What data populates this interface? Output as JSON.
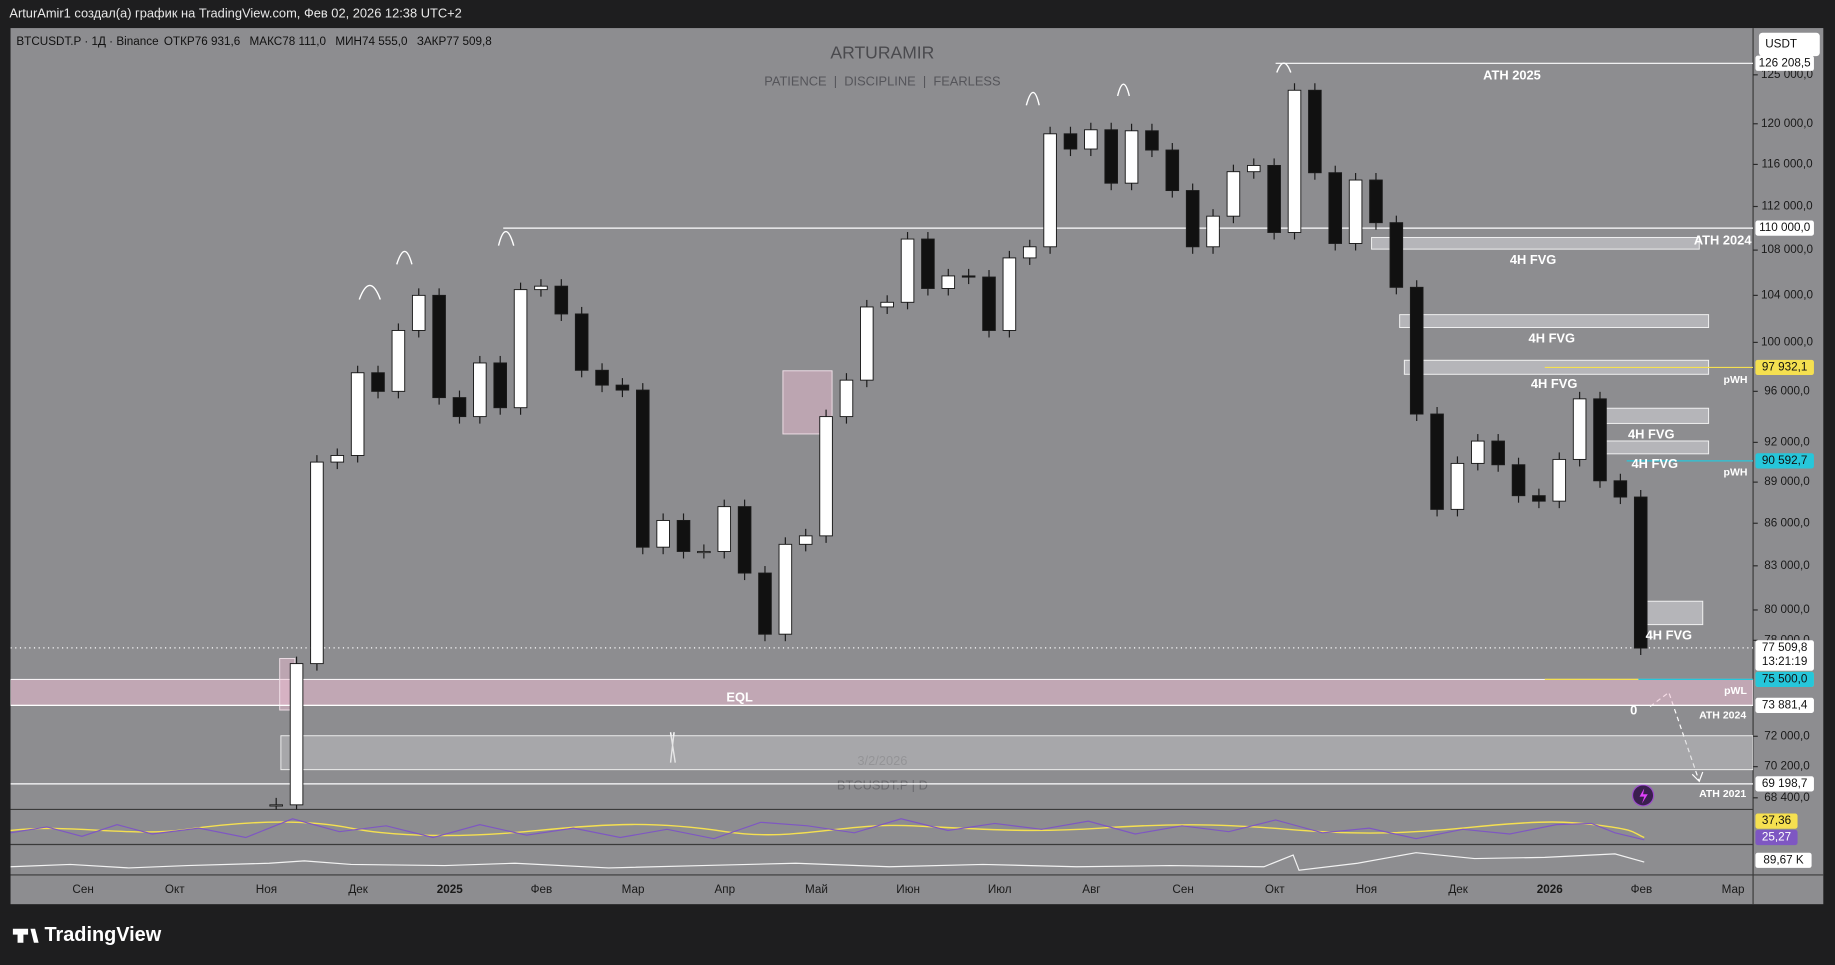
{
  "header": {
    "text": "ArturAmir1 создал(а) график на TradingView.com, Фев 02, 2026 12:38 UTC+2"
  },
  "symbol_bar": {
    "symbol": "BTCUSDT.P · 1Д · Binance",
    "fields": [
      {
        "key": "ОТКР",
        "value": "76 931,6"
      },
      {
        "key": "МАКС",
        "value": "78 111,0"
      },
      {
        "key": "МИН",
        "value": "74 555,0"
      },
      {
        "key": "ЗАКР",
        "value": "77 509,8"
      }
    ]
  },
  "watermark": {
    "title": "ARTURAMIR",
    "subtitle": "PATIENCE  |  DISCIPLINE  |  FEARLESS",
    "date": "3/2/2026",
    "symbol": "BTCUSDT.P | D"
  },
  "chart_data": {
    "type": "candlestick",
    "currency": "USDT",
    "log_scale": true,
    "up_color": "#ffffff",
    "down_color": "#111111",
    "ylim": [
      67740,
      129970
    ],
    "yticks": [
      {
        "value": 125000,
        "label": "125 000,0"
      },
      {
        "value": 120000,
        "label": "120 000,0"
      },
      {
        "value": 116000,
        "label": "116 000,0"
      },
      {
        "value": 112000,
        "label": "112 000,0"
      },
      {
        "value": 108000,
        "label": "108 000,0"
      },
      {
        "value": 104000,
        "label": "104 000,0"
      },
      {
        "value": 100000,
        "label": "100 000,0"
      },
      {
        "value": 96000,
        "label": "96 000,0"
      },
      {
        "value": 92000,
        "label": "92 000,0"
      },
      {
        "value": 89000,
        "label": "89 000,0"
      },
      {
        "value": 86000,
        "label": "86 000,0"
      },
      {
        "value": 83000,
        "label": "83 000,0"
      },
      {
        "value": 80000,
        "label": "80 000,0"
      },
      {
        "value": 78000,
        "label": "78 000,0"
      },
      {
        "value": 72000,
        "label": "72 000,0"
      },
      {
        "value": 70200,
        "label": "70 200,0"
      },
      {
        "value": 68400,
        "label": "68 400,0"
      }
    ],
    "values": [
      68000,
      76500,
      90500,
      91000,
      97500,
      96000,
      101000,
      104000,
      95500,
      94000,
      98300,
      94700,
      104500,
      104800,
      102400,
      97700,
      96500,
      96100,
      84300,
      86200,
      84000,
      84000,
      87200,
      82500,
      78400,
      84500,
      85100,
      94000,
      96900,
      103000,
      103400,
      109000,
      104600,
      105700,
      105600,
      101000,
      107300,
      108300,
      119000,
      117500,
      119400,
      114200,
      119300,
      117400,
      113500,
      108300,
      111100,
      115300,
      115900,
      109600,
      123400,
      115200,
      108600,
      114500,
      110500,
      104700,
      94200,
      87000,
      90400,
      92100,
      90300,
      88000,
      87600,
      90700,
      95400,
      89100,
      87900,
      77500
    ],
    "price_markers": [
      {
        "value": 126208.5,
        "label": "126 208,5",
        "color": "#ffffff"
      },
      {
        "value": 110000,
        "label": "110 000,0",
        "color": "#ffffff"
      },
      {
        "value": 97932.1,
        "label": "97 932,1",
        "color": "#f5e050"
      },
      {
        "value": 90592.7,
        "label": "90 592,7",
        "color": "#26c6da"
      },
      {
        "value": 77509.8,
        "label": "77 509,8",
        "color": "#ffffff",
        "countdown": "13:21:19"
      },
      {
        "value": 75500,
        "label": "75 500,0",
        "color": "#f5e050"
      },
      {
        "value": 75500,
        "label": "75 500,0",
        "color": "#26c6da"
      },
      {
        "value": 73881.4,
        "label": "73 881,4",
        "color": "#ffffff"
      },
      {
        "value": 69198.7,
        "label": "69 198,7",
        "color": "#ffffff"
      }
    ],
    "x_labels": [
      "Сен",
      "Окт",
      "Ноя",
      "Дек",
      "2025",
      "Фев",
      "Мар",
      "Апр",
      "Май",
      "Июн",
      "Июл",
      "Авг",
      "Сен",
      "Окт",
      "Ноя",
      "Дек",
      "2026",
      "Фев",
      "Мар"
    ]
  },
  "annotations": [
    "ATH 2025",
    "ATH 2024",
    "4H FVG",
    "4H FVG",
    "4H FVG",
    "4H FVG",
    "4H FVG",
    "4H FVG",
    "pWH",
    "pWH",
    "pWL",
    "ATH 2024",
    "ATH 2021",
    "EQL",
    "0"
  ],
  "indicators": {
    "rsi": [
      {
        "value": 37.36,
        "label": "37,36",
        "color": "#f5e050"
      },
      {
        "value": 25.27,
        "label": "25,27",
        "color": "#7e57c2"
      }
    ],
    "volume": {
      "value": 89670,
      "label": "89,67 K"
    }
  },
  "footer": {
    "brand": "TradingView"
  }
}
